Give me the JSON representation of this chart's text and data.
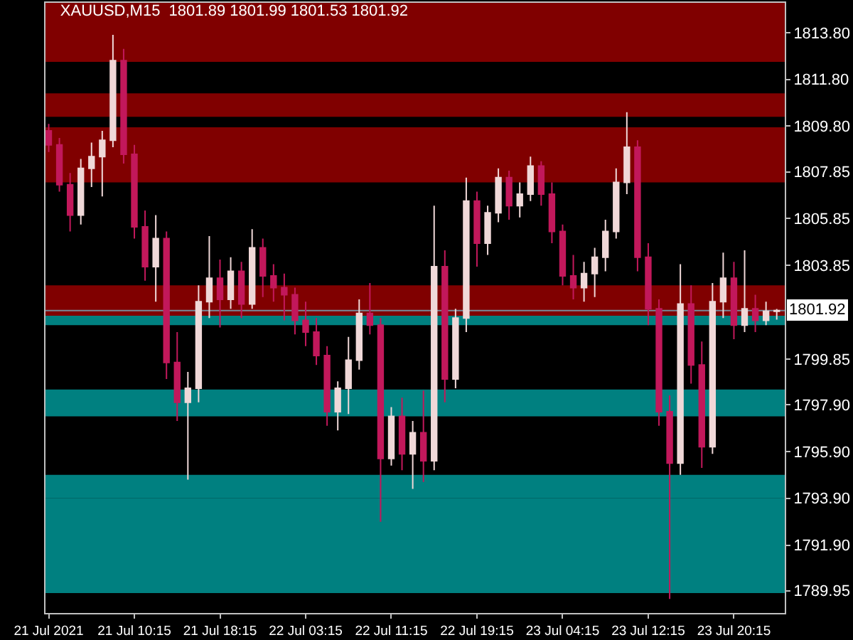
{
  "chart_data": {
    "type": "candlestick",
    "title": "XAUUSD,M15  1801.89 1801.99 1801.53 1801.92",
    "categories": [
      "21 Jul 2021",
      null,
      null,
      null,
      null,
      null,
      null,
      null,
      "21 Jul 10:15",
      null,
      null,
      null,
      null,
      null,
      null,
      null,
      "21 Jul 18:15",
      null,
      null,
      null,
      null,
      null,
      null,
      null,
      "22 Jul 03:15",
      null,
      null,
      null,
      null,
      null,
      null,
      null,
      "22 Jul 11:15",
      null,
      null,
      null,
      null,
      null,
      null,
      null,
      "22 Jul 19:15",
      null,
      null,
      null,
      null,
      null,
      null,
      null,
      "23 Jul 04:15",
      null,
      null,
      null,
      null,
      null,
      null,
      null,
      "23 Jul 12:15",
      null,
      null,
      null,
      null,
      null,
      null,
      null,
      "23 Jul 20:15",
      null,
      null,
      null,
      null
    ],
    "ohlc": [
      [
        1809.6,
        1809.9,
        1808.7,
        1809.0
      ],
      [
        1809.0,
        1809.3,
        1807.0,
        1807.3
      ],
      [
        1807.3,
        1807.8,
        1805.3,
        1806.0
      ],
      [
        1806.0,
        1808.4,
        1805.6,
        1808.0
      ],
      [
        1808.0,
        1809.1,
        1807.2,
        1808.5
      ],
      [
        1808.5,
        1809.6,
        1806.8,
        1809.2
      ],
      [
        1809.2,
        1813.7,
        1808.9,
        1812.6
      ],
      [
        1812.6,
        1813.1,
        1808.2,
        1808.6
      ],
      [
        1808.6,
        1809.0,
        1805.0,
        1805.5
      ],
      [
        1805.5,
        1806.2,
        1803.2,
        1803.8
      ],
      [
        1803.8,
        1806.0,
        1802.3,
        1805.0
      ],
      [
        1805.0,
        1805.3,
        1799.0,
        1799.7
      ],
      [
        1799.7,
        1801.0,
        1797.2,
        1798.0
      ],
      [
        1798.0,
        1799.3,
        1794.7,
        1798.6
      ],
      [
        1798.6,
        1803.0,
        1798.0,
        1802.3
      ],
      [
        1802.3,
        1805.1,
        1801.6,
        1803.3
      ],
      [
        1803.3,
        1804.1,
        1801.2,
        1802.4
      ],
      [
        1802.4,
        1804.2,
        1802.0,
        1803.6
      ],
      [
        1803.6,
        1804.0,
        1801.6,
        1802.2
      ],
      [
        1802.2,
        1805.4,
        1802.0,
        1804.6
      ],
      [
        1804.6,
        1805.0,
        1802.5,
        1803.4
      ],
      [
        1803.4,
        1803.9,
        1802.3,
        1802.9
      ],
      [
        1802.9,
        1803.5,
        1801.5,
        1802.6
      ],
      [
        1802.6,
        1802.9,
        1800.9,
        1801.5
      ],
      [
        1801.5,
        1802.3,
        1800.4,
        1801.0
      ],
      [
        1801.0,
        1801.6,
        1799.6,
        1800.0
      ],
      [
        1800.0,
        1800.4,
        1797.0,
        1797.6
      ],
      [
        1797.6,
        1798.9,
        1796.8,
        1798.6
      ],
      [
        1798.6,
        1800.8,
        1797.5,
        1799.8
      ],
      [
        1799.8,
        1802.4,
        1799.4,
        1801.8
      ],
      [
        1801.8,
        1803.1,
        1800.9,
        1801.3
      ],
      [
        1801.3,
        1801.6,
        1792.9,
        1795.6
      ],
      [
        1795.6,
        1797.8,
        1795.3,
        1797.4
      ],
      [
        1797.4,
        1798.2,
        1795.1,
        1795.8
      ],
      [
        1795.8,
        1797.2,
        1794.3,
        1796.7
      ],
      [
        1796.7,
        1798.5,
        1794.6,
        1795.5
      ],
      [
        1795.5,
        1806.4,
        1795.1,
        1803.8
      ],
      [
        1803.8,
        1804.5,
        1798.0,
        1799.0
      ],
      [
        1799.0,
        1802.0,
        1798.6,
        1801.6
      ],
      [
        1801.6,
        1807.6,
        1801.0,
        1806.6
      ],
      [
        1806.6,
        1807.0,
        1803.8,
        1804.8
      ],
      [
        1804.8,
        1806.4,
        1804.3,
        1806.1
      ],
      [
        1806.1,
        1808.0,
        1805.7,
        1807.6
      ],
      [
        1807.6,
        1807.9,
        1805.8,
        1806.4
      ],
      [
        1806.4,
        1807.4,
        1805.9,
        1806.9
      ],
      [
        1806.9,
        1808.5,
        1806.6,
        1808.1
      ],
      [
        1808.1,
        1808.3,
        1806.4,
        1806.9
      ],
      [
        1806.9,
        1807.4,
        1804.8,
        1805.3
      ],
      [
        1805.3,
        1805.6,
        1803.0,
        1803.4
      ],
      [
        1803.4,
        1804.3,
        1802.4,
        1802.9
      ],
      [
        1802.9,
        1804.0,
        1802.3,
        1803.5
      ],
      [
        1803.5,
        1804.6,
        1802.5,
        1804.2
      ],
      [
        1804.2,
        1805.8,
        1803.6,
        1805.3
      ],
      [
        1805.3,
        1808.0,
        1805.0,
        1807.4
      ],
      [
        1807.4,
        1810.4,
        1806.9,
        1808.9
      ],
      [
        1808.9,
        1809.2,
        1803.6,
        1804.2
      ],
      [
        1804.2,
        1804.8,
        1801.3,
        1802.0
      ],
      [
        1802.0,
        1802.4,
        1797.0,
        1797.6
      ],
      [
        1797.6,
        1798.3,
        1789.6,
        1795.4
      ],
      [
        1795.4,
        1803.9,
        1794.9,
        1802.2
      ],
      [
        1802.2,
        1803.0,
        1798.8,
        1799.6
      ],
      [
        1799.6,
        1800.6,
        1795.2,
        1796.1
      ],
      [
        1796.1,
        1803.1,
        1795.8,
        1802.3
      ],
      [
        1802.3,
        1804.4,
        1801.6,
        1803.3
      ],
      [
        1803.3,
        1804.0,
        1800.7,
        1801.3
      ],
      [
        1801.3,
        1804.5,
        1801.0,
        1802.0
      ],
      [
        1802.0,
        1802.6,
        1801.0,
        1801.5
      ],
      [
        1801.5,
        1802.3,
        1801.3,
        1801.89
      ],
      [
        1801.89,
        1801.99,
        1801.53,
        1801.92
      ]
    ],
    "colors": [
      "#c2185b",
      "#c2185b",
      "#c2185b",
      "#f0d8d8",
      "#f0d8d8",
      "#f0d8d8",
      "#f0d8d8",
      "#c2185b",
      "#c2185b",
      "#c2185b",
      "#f0d8d8",
      "#c2185b",
      "#c2185b",
      "#f0d8d8",
      "#f0d8d8",
      "#f0d8d8",
      "#c2185b",
      "#f0d8d8",
      "#c2185b",
      "#f0d8d8",
      "#c2185b",
      "#c2185b",
      "#c2185b",
      "#c2185b",
      "#c2185b",
      "#c2185b",
      "#c2185b",
      "#f0d8d8",
      "#f0d8d8",
      "#f0d8d8",
      "#c2185b",
      "#c2185b",
      "#f0d8d8",
      "#c2185b",
      "#f0d8d8",
      "#c2185b",
      "#f0d8d8",
      "#c2185b",
      "#f0d8d8",
      "#f0d8d8",
      "#c2185b",
      "#f0d8d8",
      "#f0d8d8",
      "#c2185b",
      "#f0d8d8",
      "#f0d8d8",
      "#c2185b",
      "#c2185b",
      "#c2185b",
      "#c2185b",
      "#f0d8d8",
      "#f0d8d8",
      "#f0d8d8",
      "#f0d8d8",
      "#f0d8d8",
      "#c2185b",
      "#c2185b",
      "#c2185b",
      "#c2185b",
      "#f0d8d8",
      "#c2185b",
      "#c2185b",
      "#f0d8d8",
      "#f0d8d8",
      "#c2185b",
      "#f0d8d8",
      "#c2185b",
      "#f0d8d8",
      "#f0d8d8"
    ],
    "ylim": [
      1789.0,
      1815.07
    ],
    "yticks": [
      {
        "value": 1813.8,
        "label": "1813.80"
      },
      {
        "value": 1811.8,
        "label": "1811.80"
      },
      {
        "value": 1809.8,
        "label": "1809.80"
      },
      {
        "value": 1807.85,
        "label": "1807.85"
      },
      {
        "value": 1805.85,
        "label": "1805.85"
      },
      {
        "value": 1803.85,
        "label": "1803.85"
      },
      {
        "value": 1799.85,
        "label": "1799.85"
      },
      {
        "value": 1797.9,
        "label": "1797.90"
      },
      {
        "value": 1795.9,
        "label": "1795.90"
      },
      {
        "value": 1793.9,
        "label": "1793.90"
      },
      {
        "value": 1791.9,
        "label": "1791.90"
      },
      {
        "value": 1789.95,
        "label": "1789.95"
      }
    ],
    "bands": [
      {
        "axis": "y",
        "from": 1812.55,
        "to": 1815.07,
        "color": "#800000"
      },
      {
        "axis": "y",
        "from": 1810.2,
        "to": 1811.2,
        "color": "#800000"
      },
      {
        "axis": "y",
        "from": 1807.4,
        "to": 1809.75,
        "color": "#800000"
      },
      {
        "axis": "y",
        "from": 1801.7,
        "to": 1803.0,
        "color": "#800000"
      },
      {
        "axis": "y",
        "from": 1801.3,
        "to": 1801.7,
        "color": "#008080"
      },
      {
        "axis": "y",
        "from": 1797.4,
        "to": 1798.55,
        "color": "#008080"
      },
      {
        "axis": "y",
        "from": 1793.9,
        "to": 1794.9,
        "color": "#008080"
      },
      {
        "axis": "y",
        "from": 1789.85,
        "to": 1793.9,
        "color": "#008080"
      }
    ],
    "ref_lines": [
      {
        "axis": "y",
        "value": 1801.92,
        "label": "1801.92",
        "color": "#778899"
      }
    ],
    "grid": false
  }
}
